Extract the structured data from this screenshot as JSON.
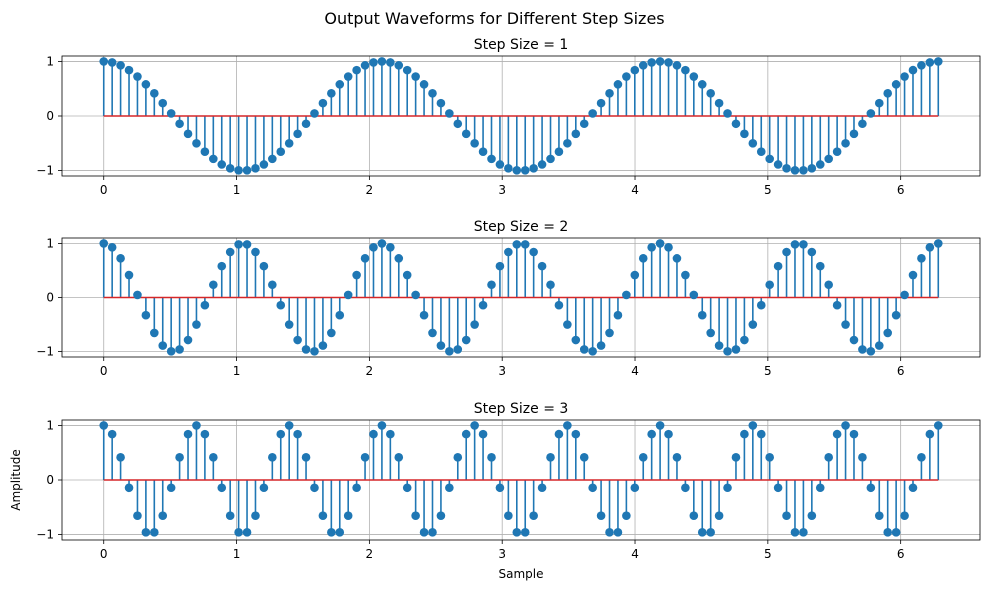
{
  "suptitle": "Output Waveforms for Different Step Sizes",
  "chart_data": [
    {
      "type": "stem",
      "title": "Step Size = 1",
      "xlabel": "",
      "ylabel": "",
      "xlim": [
        -0.3142,
        6.5973
      ],
      "ylim": [
        -1.1,
        1.1
      ],
      "x_ticks": [
        0,
        1,
        2,
        3,
        4,
        5,
        6
      ],
      "y_ticks": [
        -1,
        0,
        1
      ],
      "grid": true,
      "x_range": {
        "start": 0,
        "stop": 6.2832,
        "count": 100
      },
      "function": "cos(3 * x)",
      "baseline": 0,
      "stem_color": "#1f77b4",
      "marker_color": "#1f77b4",
      "baseline_color": "#d62728"
    },
    {
      "type": "stem",
      "title": "Step Size = 2",
      "xlabel": "",
      "ylabel": "",
      "xlim": [
        -0.3142,
        6.5973
      ],
      "ylim": [
        -1.1,
        1.1
      ],
      "x_ticks": [
        0,
        1,
        2,
        3,
        4,
        5,
        6
      ],
      "y_ticks": [
        -1,
        0,
        1
      ],
      "grid": true,
      "x_range": {
        "start": 0,
        "stop": 6.2832,
        "count": 100
      },
      "function": "cos(6 * x)",
      "baseline": 0,
      "stem_color": "#1f77b4",
      "marker_color": "#1f77b4",
      "baseline_color": "#d62728"
    },
    {
      "type": "stem",
      "title": "Step Size = 3",
      "xlabel": "Sample",
      "ylabel": "Amplitude",
      "xlim": [
        -0.3142,
        6.5973
      ],
      "ylim": [
        -1.1,
        1.1
      ],
      "x_ticks": [
        0,
        1,
        2,
        3,
        4,
        5,
        6
      ],
      "y_ticks": [
        -1,
        0,
        1
      ],
      "grid": true,
      "x_range": {
        "start": 0,
        "stop": 6.2832,
        "count": 100
      },
      "function": "cos(9 * x)",
      "baseline": 0,
      "stem_color": "#1f77b4",
      "marker_color": "#1f77b4",
      "baseline_color": "#d62728"
    }
  ]
}
